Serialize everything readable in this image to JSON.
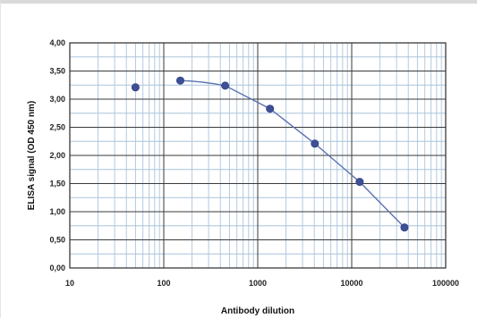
{
  "chart_data": {
    "type": "line",
    "title": "",
    "xlabel": "Antibody dilution",
    "ylabel": "ELISA signal (OD 450 nm)",
    "x_scale": "log",
    "xlim": [
      10,
      100000
    ],
    "ylim": [
      0,
      4
    ],
    "grid": true,
    "x_ticks": [
      "10",
      "100",
      "1000",
      "10000",
      "100000"
    ],
    "y_ticks": [
      "0,00",
      "0,50",
      "1,00",
      "1,50",
      "2,00",
      "2,50",
      "3,00",
      "3,50",
      "4,00"
    ],
    "series": [
      {
        "x": [
          50,
          150,
          450,
          1350,
          4050,
          12150,
          36450
        ],
        "y": [
          3.21,
          3.33,
          3.24,
          2.83,
          2.21,
          1.53,
          0.72
        ]
      }
    ],
    "colors": {
      "plot_bg": "#ffffff",
      "grid_major": "#3a3a3a",
      "grid_minor": "#aac4dc",
      "line": "#5a72b0",
      "marker": "#3d4f96"
    }
  }
}
